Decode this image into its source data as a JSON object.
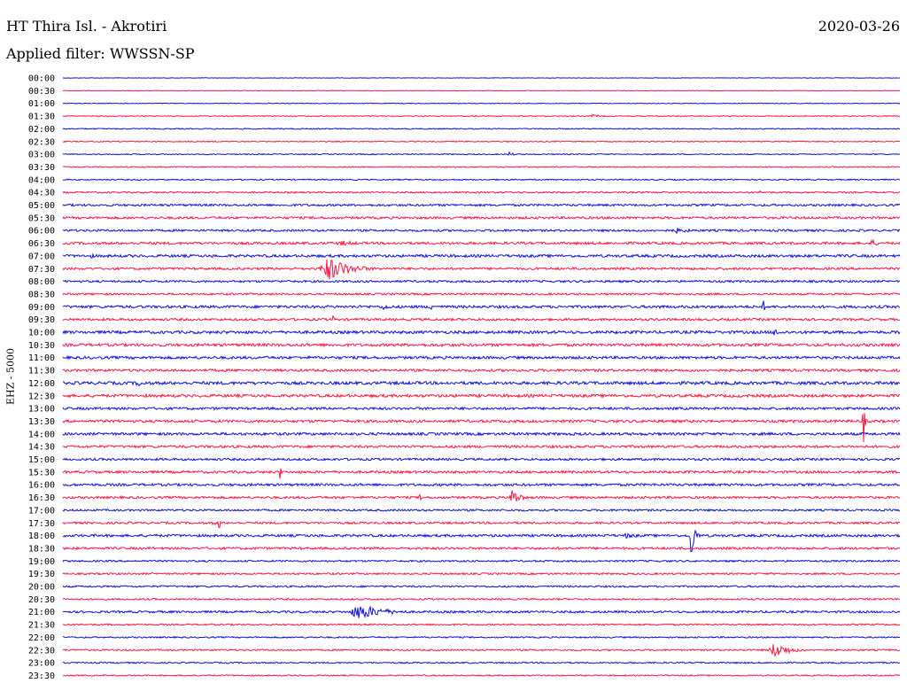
{
  "header": {
    "title": "HT Thira Isl. - Akrotiri",
    "date": "2020-03-26",
    "filter": "Applied filter: WWSSN-SP"
  },
  "colors": {
    "blue": "#1010d8",
    "red": "#ff1744",
    "text": "#000000"
  },
  "chart_data": {
    "type": "line",
    "title": "HT Thira Isl. - Akrotiri",
    "ylabel": "EHZ - 5000",
    "xlabel": "",
    "grid": false,
    "legend": "none",
    "series_colors": [
      "#1010d8",
      "#ff1744"
    ],
    "row_labels": [
      "00:00",
      "00:30",
      "01:00",
      "01:30",
      "02:00",
      "02:30",
      "03:00",
      "03:30",
      "04:00",
      "04:30",
      "05:00",
      "05:30",
      "06:00",
      "06:30",
      "07:00",
      "07:30",
      "08:00",
      "08:30",
      "09:00",
      "09:30",
      "10:00",
      "10:30",
      "11:00",
      "11:30",
      "12:00",
      "12:30",
      "13:00",
      "13:30",
      "14:00",
      "14:30",
      "15:00",
      "15:30",
      "16:00",
      "16:30",
      "17:00",
      "17:30",
      "18:00",
      "18:30",
      "19:00",
      "19:30",
      "20:00",
      "20:30",
      "21:00",
      "21:30",
      "22:00",
      "22:30",
      "23:00",
      "23:30"
    ],
    "noise_level": [
      0.3,
      0.3,
      0.4,
      0.5,
      0.6,
      0.6,
      0.6,
      0.6,
      0.7,
      0.9,
      1.2,
      1.3,
      1.2,
      1.4,
      1.5,
      1.3,
      1.2,
      1.1,
      1.5,
      1.3,
      1.6,
      1.6,
      1.5,
      1.4,
      1.7,
      1.6,
      1.4,
      1.5,
      1.5,
      1.4,
      1.3,
      1.4,
      1.4,
      1.3,
      1.1,
      1.2,
      1.4,
      1.3,
      1.0,
      1.0,
      1.0,
      0.9,
      1.2,
      0.9,
      0.8,
      0.9,
      0.8,
      0.7
    ],
    "events": [
      {
        "row": 3,
        "minute": 19,
        "amp": 2,
        "dur": 1.0
      },
      {
        "row": 6,
        "minute": 16,
        "amp": 3,
        "dur": 0.4
      },
      {
        "row": 9,
        "minute": 25,
        "amp": 2,
        "dur": 0.7
      },
      {
        "row": 12,
        "minute": 22,
        "amp": 3,
        "dur": 2.0
      },
      {
        "row": 13,
        "minute": 10,
        "amp": 3,
        "dur": 2.5
      },
      {
        "row": 13,
        "minute": 29,
        "amp": 4,
        "dur": 0.9
      },
      {
        "row": 14,
        "minute": 1,
        "amp": 3,
        "dur": 0.7
      },
      {
        "row": 15,
        "minute": 9.5,
        "amp": 14,
        "dur": 2.3
      },
      {
        "row": 18,
        "minute": 11.5,
        "amp": 4,
        "dur": 1.0
      },
      {
        "row": 18,
        "minute": 13.2,
        "amp": 9,
        "dur": 0.15
      },
      {
        "row": 18,
        "minute": 21.4,
        "amp": 8,
        "dur": 0.15
      },
      {
        "row": 18,
        "minute": 25.1,
        "amp": 9,
        "dur": 0.15
      },
      {
        "row": 19,
        "minute": 9.7,
        "amp": 7,
        "dur": 0.1
      },
      {
        "row": 20,
        "minute": 25.5,
        "amp": 4,
        "dur": 1.2
      },
      {
        "row": 24,
        "minute": 2.7,
        "amp": 4,
        "dur": 1.2
      },
      {
        "row": 25,
        "minute": 11,
        "amp": 2,
        "dur": 1.5
      },
      {
        "row": 27,
        "minute": 28.7,
        "amp": 26,
        "dur": 0.12
      },
      {
        "row": 31,
        "minute": 7.8,
        "amp": 14,
        "dur": 0.12
      },
      {
        "row": 33,
        "minute": 12.8,
        "amp": 6,
        "dur": 0.12
      },
      {
        "row": 33,
        "minute": 16.1,
        "amp": 11,
        "dur": 0.8
      },
      {
        "row": 35,
        "minute": 5.4,
        "amp": 7,
        "dur": 0.15
      },
      {
        "row": 35,
        "minute": 5.6,
        "amp": 13,
        "dur": 0.12
      },
      {
        "row": 36,
        "minute": 20.2,
        "amp": 3,
        "dur": 1.8
      },
      {
        "row": 36,
        "minute": 22.5,
        "amp": 34,
        "dur": 0.35
      },
      {
        "row": 42,
        "minute": 10.6,
        "amp": 9,
        "dur": 2.8
      },
      {
        "row": 45,
        "minute": 25.5,
        "amp": 9,
        "dur": 1.6
      }
    ]
  }
}
